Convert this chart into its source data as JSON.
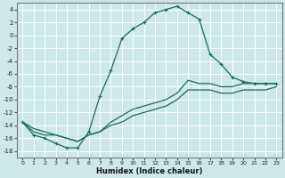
{
  "xlabel": "Humidex (Indice chaleur)",
  "bg_color": "#cce8e8",
  "grid_color": "#ffffff",
  "line_color": "#1a6b5a",
  "xlim": [
    -0.5,
    23.5
  ],
  "ylim": [
    -19,
    5
  ],
  "xticks": [
    0,
    1,
    2,
    3,
    4,
    5,
    6,
    7,
    8,
    9,
    10,
    11,
    12,
    13,
    14,
    15,
    16,
    17,
    18,
    19,
    20,
    21,
    22,
    23
  ],
  "yticks": [
    -18,
    -16,
    -14,
    -12,
    -10,
    -8,
    -6,
    -4,
    -2,
    0,
    2,
    4
  ],
  "line1_x": [
    0,
    1,
    2,
    3,
    4,
    5,
    6,
    7,
    8,
    9,
    10,
    11,
    12,
    13,
    14,
    15,
    16,
    17,
    18,
    19,
    20,
    21,
    22,
    23
  ],
  "line1_y": [
    -13.5,
    -15.5,
    -16,
    -16.8,
    -17.5,
    -17.5,
    -15,
    -9.5,
    -5.5,
    -0.5,
    1,
    2,
    3.5,
    4,
    4.5,
    3.5,
    2.5,
    -3.0,
    -4.5,
    -6.5,
    -7.2,
    -7.5,
    -7.5,
    -7.5
  ],
  "line2_x": [
    0,
    1,
    2,
    3,
    4,
    5,
    6,
    7,
    8,
    9,
    10,
    11,
    12,
    13,
    14,
    15,
    16,
    17,
    18,
    19,
    20,
    21,
    22,
    23
  ],
  "line2_y": [
    -13.5,
    -15.0,
    -15.5,
    -15.5,
    -16.0,
    -16.5,
    -15.5,
    -15.0,
    -13.5,
    -12.5,
    -11.5,
    -11.0,
    -10.5,
    -10.0,
    -9.0,
    -7.0,
    -7.5,
    -7.5,
    -8.0,
    -8.0,
    -7.5,
    -7.5,
    -7.5,
    -7.5
  ],
  "line3_x": [
    0,
    1,
    2,
    3,
    4,
    5,
    6,
    7,
    8,
    9,
    10,
    11,
    12,
    13,
    14,
    15,
    16,
    17,
    18,
    19,
    20,
    21,
    22,
    23
  ],
  "line3_y": [
    -13.5,
    -14.5,
    -15.0,
    -15.5,
    -16.0,
    -16.5,
    -15.5,
    -15.0,
    -14.0,
    -13.5,
    -12.5,
    -12.0,
    -11.5,
    -11.0,
    -10.0,
    -8.5,
    -8.5,
    -8.5,
    -9.0,
    -9.0,
    -8.5,
    -8.5,
    -8.5,
    -8.0
  ]
}
